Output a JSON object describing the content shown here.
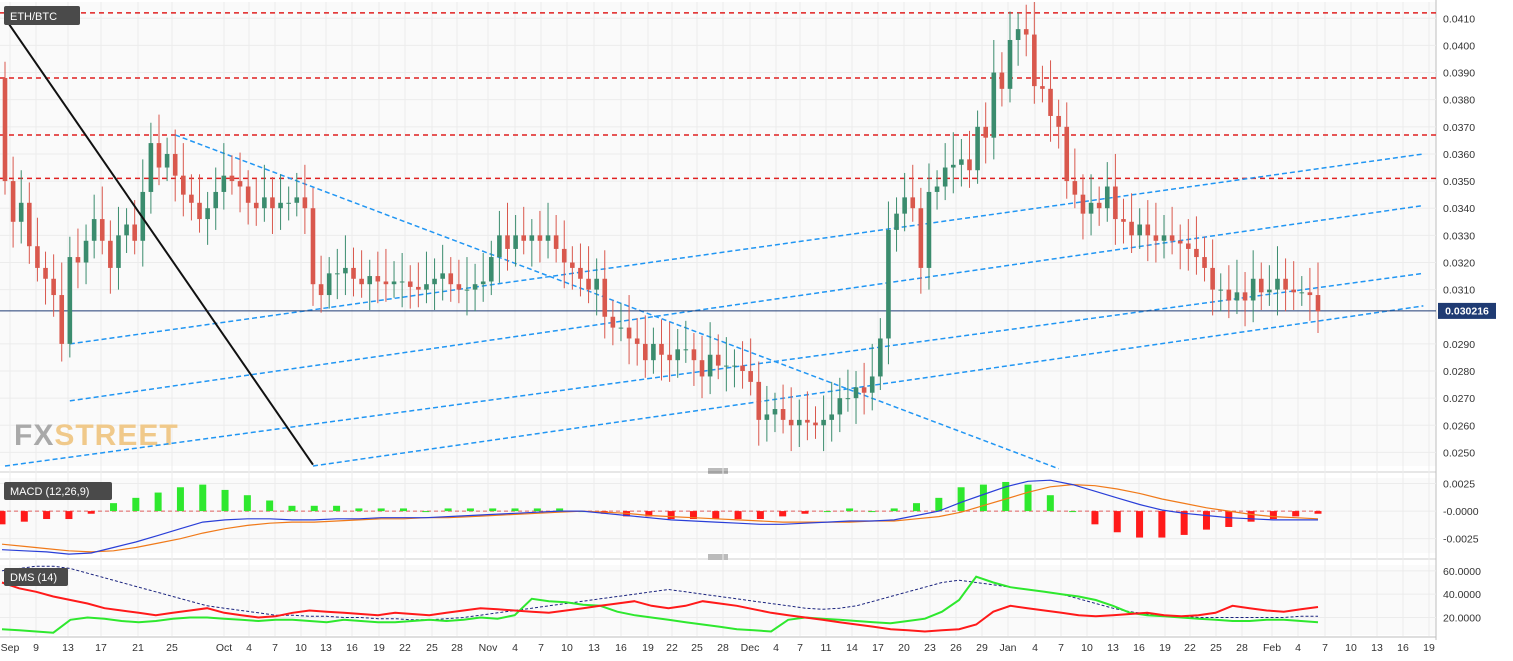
{
  "chart_data": [
    {
      "type": "candlestick",
      "pane": "price",
      "symbol": "ETH/BTC",
      "watermark": {
        "text_a": "FX",
        "text_b": "STREET",
        "color_a": "#a9a9a9",
        "color_b": "#f0c98a"
      },
      "current_price": "0.030216",
      "current_price_value": 0.030216,
      "ylim": [
        0.0245,
        0.0416
      ],
      "y_ticks": [
        "0.0410",
        "0.0400",
        "0.0390",
        "0.0380",
        "0.0370",
        "0.0360",
        "0.0350",
        "0.0340",
        "0.0330",
        "0.0320",
        "0.0310",
        "0.0290",
        "0.0280",
        "0.0270",
        "0.0260",
        "0.0250"
      ],
      "resistance_levels": [
        0.0412,
        0.0388,
        0.0367,
        0.0351
      ],
      "colors": {
        "up": "#3b8c6e",
        "down": "#d9584d",
        "resistance": "#e02020",
        "channel": "#2196f3",
        "trendline": "#111111",
        "price_line": "#1f3b73"
      },
      "candles_open": [
        0.0388,
        0.035,
        0.0335,
        0.0342,
        0.0326,
        0.0318,
        0.0314,
        0.0308,
        0.029,
        0.0322,
        0.032,
        0.0328,
        0.0336,
        0.0328,
        0.0318,
        0.033,
        0.0334,
        0.0328,
        0.0346,
        0.0364,
        0.0355,
        0.036,
        0.0352,
        0.0345,
        0.0342,
        0.0336,
        0.034,
        0.0346,
        0.0352,
        0.035,
        0.0348,
        0.0342,
        0.034,
        0.0344,
        0.034,
        0.0342,
        0.0342,
        0.0344,
        0.034,
        0.0312,
        0.0308,
        0.0316,
        0.0316,
        0.0318,
        0.0314,
        0.0312,
        0.0315,
        0.0313,
        0.0312,
        0.0313,
        0.0313,
        0.0311,
        0.031,
        0.0312,
        0.0314,
        0.0316,
        0.0312,
        0.031,
        0.031,
        0.0312,
        0.0313,
        0.0322,
        0.033,
        0.0325,
        0.033,
        0.0328,
        0.033,
        0.0328,
        0.033,
        0.0325,
        0.032,
        0.0318,
        0.0314,
        0.031,
        0.0314,
        0.03,
        0.0296,
        0.0296,
        0.0292,
        0.029,
        0.0284,
        0.029,
        0.0286,
        0.0284,
        0.0288,
        0.0288,
        0.0284,
        0.0278,
        0.0286,
        0.0282,
        0.0282,
        0.0282,
        0.028,
        0.0276,
        0.0262,
        0.0264,
        0.0266,
        0.0262,
        0.026,
        0.0262,
        0.0261,
        0.026,
        0.0262,
        0.0264,
        0.027,
        0.027,
        0.0274,
        0.0272,
        0.0278,
        0.0292,
        0.0332,
        0.0338,
        0.0344,
        0.034,
        0.0318,
        0.0346,
        0.0348,
        0.0355,
        0.0356,
        0.0358,
        0.0354,
        0.037,
        0.0366,
        0.039,
        0.0384,
        0.0402,
        0.0406,
        0.0404,
        0.0385,
        0.0384,
        0.0374,
        0.037,
        0.035,
        0.0345,
        0.0338,
        0.0342,
        0.034,
        0.0348,
        0.0336,
        0.0335,
        0.033,
        0.0334,
        0.033,
        0.0328,
        0.033,
        0.0328,
        0.0327,
        0.0325,
        0.0322,
        0.0318,
        0.031,
        0.031,
        0.0306,
        0.0309,
        0.0306,
        0.0314,
        0.0309,
        0.031,
        0.0314,
        0.031,
        0.0309,
        0.0309,
        0.0308
      ],
      "candles_close": [
        0.035,
        0.0335,
        0.0342,
        0.0326,
        0.0318,
        0.0314,
        0.0308,
        0.029,
        0.0322,
        0.032,
        0.0328,
        0.0336,
        0.0328,
        0.0318,
        0.033,
        0.0334,
        0.0328,
        0.0346,
        0.0364,
        0.0355,
        0.036,
        0.0352,
        0.0345,
        0.0342,
        0.0336,
        0.034,
        0.0346,
        0.0352,
        0.035,
        0.0348,
        0.0342,
        0.034,
        0.0344,
        0.034,
        0.0342,
        0.0342,
        0.0344,
        0.034,
        0.0312,
        0.0308,
        0.0316,
        0.0316,
        0.0318,
        0.0314,
        0.0312,
        0.0315,
        0.0313,
        0.0312,
        0.0313,
        0.0313,
        0.0311,
        0.031,
        0.0312,
        0.0314,
        0.0316,
        0.0312,
        0.031,
        0.031,
        0.0312,
        0.0313,
        0.0322,
        0.033,
        0.0325,
        0.033,
        0.0328,
        0.033,
        0.0328,
        0.033,
        0.0325,
        0.032,
        0.0318,
        0.0314,
        0.031,
        0.0314,
        0.03,
        0.0296,
        0.0296,
        0.0292,
        0.029,
        0.0284,
        0.029,
        0.0286,
        0.0284,
        0.0288,
        0.0288,
        0.0284,
        0.0278,
        0.0286,
        0.0282,
        0.0282,
        0.0282,
        0.028,
        0.0276,
        0.0262,
        0.0264,
        0.0266,
        0.0262,
        0.026,
        0.0262,
        0.0261,
        0.026,
        0.0262,
        0.0264,
        0.027,
        0.027,
        0.0274,
        0.0272,
        0.0278,
        0.0292,
        0.0332,
        0.0338,
        0.0344,
        0.034,
        0.0318,
        0.0346,
        0.0348,
        0.0355,
        0.0356,
        0.0358,
        0.0354,
        0.037,
        0.0366,
        0.039,
        0.0384,
        0.0402,
        0.0406,
        0.0404,
        0.0385,
        0.0384,
        0.0374,
        0.037,
        0.035,
        0.0345,
        0.0338,
        0.0342,
        0.034,
        0.0348,
        0.0336,
        0.0335,
        0.033,
        0.0334,
        0.033,
        0.0328,
        0.033,
        0.0328,
        0.0327,
        0.0325,
        0.0322,
        0.0318,
        0.031,
        0.031,
        0.0306,
        0.0309,
        0.0306,
        0.0314,
        0.0309,
        0.031,
        0.0314,
        0.031,
        0.0309,
        0.0309,
        0.0308,
        0.0302
      ]
    },
    {
      "type": "histogram+line",
      "pane": "macd",
      "label": "MACD (12,26,9)",
      "ylim": [
        -0.0038,
        0.003
      ],
      "y_ticks": [
        "0.0025",
        "-0.0000",
        "-0.0025"
      ],
      "y_tick_values": [
        0.0025,
        0.0,
        -0.0025
      ],
      "colors": {
        "macd": "#2a3fd8",
        "signal": "#f07a1a",
        "hist_pos": "#2ee82e",
        "hist_neg": "#ff1a1a",
        "zero": "#e06060"
      },
      "macd": [
        -0.0035,
        -0.0036,
        -0.0037,
        -0.0039,
        -0.0038,
        -0.0033,
        -0.0028,
        -0.0022,
        -0.0016,
        -0.001,
        -0.0008,
        -0.0007,
        -0.0007,
        -0.0008,
        -0.0008,
        -0.0007,
        -0.0007,
        -0.0006,
        -0.0006,
        -0.0006,
        -0.0005,
        -0.0004,
        -0.0003,
        -0.0002,
        -0.0001,
        0.0,
        0.0,
        -0.0002,
        -0.0004,
        -0.0006,
        -0.0008,
        -0.0009,
        -0.001,
        -0.0011,
        -0.0012,
        -0.0012,
        -0.0011,
        -0.001,
        -0.0009,
        -0.0009,
        -0.0008,
        -0.0004,
        0.0,
        0.0008,
        0.0015,
        0.0022,
        0.0027,
        0.0028,
        0.0024,
        0.0018,
        0.0012,
        0.0006,
        0.0001,
        -0.0002,
        -0.0004,
        -0.0006,
        -0.0007,
        -0.0008,
        -0.0008,
        -0.0008
      ],
      "signal": [
        -0.003,
        -0.0032,
        -0.0034,
        -0.0036,
        -0.0037,
        -0.0036,
        -0.0033,
        -0.0029,
        -0.0025,
        -0.002,
        -0.0016,
        -0.0013,
        -0.0011,
        -0.001,
        -0.001,
        -0.0009,
        -0.0008,
        -0.0007,
        -0.0007,
        -0.0006,
        -0.0006,
        -0.0005,
        -0.0004,
        -0.0003,
        -0.0002,
        -0.0001,
        0.0,
        -0.0001,
        -0.0002,
        -0.0004,
        -0.0005,
        -0.0006,
        -0.0007,
        -0.0008,
        -0.0009,
        -0.001,
        -0.001,
        -0.001,
        -0.001,
        -0.0009,
        -0.0009,
        -0.0007,
        -0.0005,
        -0.0001,
        0.0005,
        0.0011,
        0.0017,
        0.0022,
        0.0024,
        0.0023,
        0.002,
        0.0016,
        0.0011,
        0.0007,
        0.0003,
        0.0,
        -0.0003,
        -0.0005,
        -0.0006,
        -0.0007
      ]
    },
    {
      "type": "line",
      "pane": "dms",
      "label": "DMS (14)",
      "ylim": [
        5,
        65
      ],
      "y_ticks": [
        "60.0000",
        "40.0000",
        "20.0000"
      ],
      "y_tick_values": [
        60,
        40,
        20
      ],
      "colors": {
        "plus_di": "#2ee82e",
        "minus_di": "#ff1a1a",
        "adx": "#1a237e"
      },
      "plus_di": [
        10,
        9,
        8,
        7,
        18,
        20,
        19,
        17,
        16,
        17,
        19,
        20,
        20,
        19,
        18,
        17,
        18,
        18,
        17,
        16,
        18,
        17,
        16,
        16,
        17,
        18,
        17,
        18,
        20,
        19,
        22,
        36,
        34,
        33,
        31,
        30,
        25,
        22,
        20,
        18,
        16,
        14,
        12,
        10,
        9,
        8,
        18,
        20,
        19,
        18,
        17,
        16,
        15,
        17,
        19,
        25,
        35,
        55,
        50,
        46,
        44,
        42,
        40,
        38,
        35,
        30,
        24,
        22,
        21,
        20,
        19,
        18,
        17,
        17,
        18,
        18,
        17,
        16
      ],
      "minus_di": [
        50,
        45,
        42,
        38,
        35,
        32,
        28,
        26,
        24,
        22,
        24,
        26,
        28,
        24,
        22,
        20,
        21,
        24,
        26,
        25,
        24,
        23,
        22,
        24,
        23,
        22,
        24,
        26,
        28,
        27,
        26,
        25,
        24,
        26,
        28,
        30,
        32,
        34,
        30,
        28,
        30,
        34,
        32,
        30,
        27,
        24,
        22,
        20,
        18,
        16,
        14,
        12,
        10,
        9,
        8,
        9,
        10,
        14,
        25,
        30,
        28,
        26,
        24,
        22,
        21,
        22,
        23,
        24,
        22,
        21,
        22,
        24,
        30,
        28,
        26,
        25,
        27,
        29
      ],
      "adx": [
        60,
        62,
        64,
        64,
        62,
        58,
        54,
        50,
        46,
        42,
        38,
        34,
        30,
        28,
        26,
        24,
        22,
        22,
        21,
        21,
        20,
        20,
        19,
        19,
        18,
        18,
        19,
        20,
        22,
        24,
        26,
        28,
        30,
        32,
        34,
        36,
        38,
        40,
        42,
        44,
        42,
        40,
        38,
        36,
        34,
        32,
        30,
        28,
        27,
        28,
        30,
        34,
        38,
        42,
        46,
        50,
        52,
        50,
        48,
        46,
        44,
        42,
        40,
        36,
        32,
        28,
        25,
        23,
        22,
        21,
        20,
        20,
        20,
        20,
        20,
        20,
        21,
        21
      ]
    },
    {
      "type": "axis",
      "pane": "time",
      "x_ticks": [
        "Sep",
        "9",
        "13",
        "17",
        "21",
        "25",
        "Oct",
        "4",
        "7",
        "10",
        "13",
        "16",
        "19",
        "22",
        "25",
        "28",
        "Nov",
        "4",
        "7",
        "10",
        "13",
        "16",
        "19",
        "22",
        "25",
        "28",
        "Dec",
        "4",
        "7",
        "11",
        "14",
        "17",
        "20",
        "23",
        "26",
        "29",
        "Jan",
        "4",
        "7",
        "10",
        "13",
        "16",
        "19",
        "22",
        "25",
        "28",
        "Feb",
        "4",
        "7",
        "10",
        "13",
        "16",
        "19"
      ]
    }
  ]
}
